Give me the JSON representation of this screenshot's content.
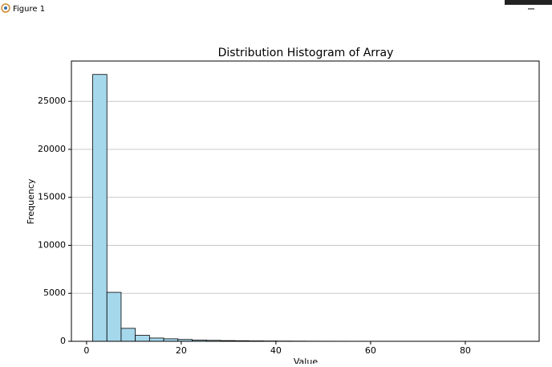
{
  "window": {
    "title": "Figure 1"
  },
  "chart_data": {
    "type": "histogram",
    "title": "Distribution Histogram of Array",
    "x_label": "Value",
    "y_label": "Frequency",
    "bins": [
      1.3,
      4.3,
      7.3,
      10.3,
      13.3,
      16.3,
      19.3,
      22.3,
      25.3,
      28.3,
      31.3,
      34.3,
      37.3,
      40.3,
      43.3,
      46.3,
      49.3,
      52.3,
      55.3,
      58.3,
      61.3,
      64.3,
      67.3,
      70.3,
      73.3,
      76.3,
      79.3,
      82.3,
      85.3,
      88.3,
      91.3
    ],
    "values": [
      27800,
      5100,
      1350,
      620,
      340,
      260,
      190,
      130,
      100,
      75,
      60,
      45,
      35,
      25,
      20,
      15,
      12,
      10,
      8,
      6,
      5,
      4,
      3,
      3,
      2,
      2,
      1,
      1,
      1,
      1
    ],
    "color": "#a6d8ec",
    "edgecolor": "#000000",
    "xlim": [
      -3.2,
      95.6
    ],
    "ylim": [
      0,
      29200
    ],
    "xticks": [
      0,
      20,
      40,
      60,
      80
    ],
    "yticks": [
      0,
      5000,
      10000,
      15000,
      20000,
      25000
    ],
    "grid": "y"
  }
}
